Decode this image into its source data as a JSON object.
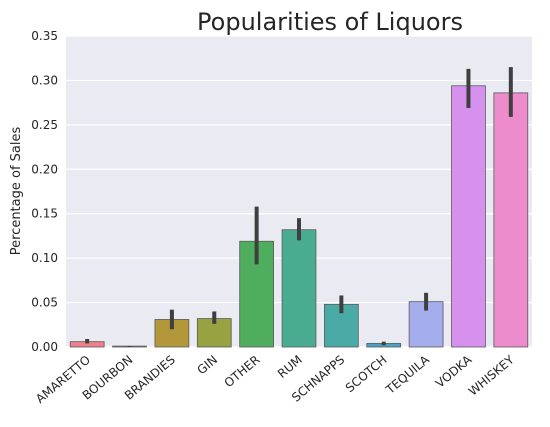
{
  "chart_data": {
    "type": "bar",
    "title": "Popularities of Liquors",
    "xlabel": "",
    "ylabel": "Percentage of Sales",
    "ylim": [
      0,
      0.35
    ],
    "yticks": [
      0.0,
      0.05,
      0.1,
      0.15,
      0.2,
      0.25,
      0.3,
      0.35
    ],
    "ytick_labels": [
      "0.00",
      "0.05",
      "0.10",
      "0.15",
      "0.20",
      "0.25",
      "0.30",
      "0.35"
    ],
    "grid": true,
    "legend": "none",
    "categories": [
      "AMARETTO",
      "BOURBON",
      "BRANDIES",
      "GIN",
      "OTHER",
      "RUM",
      "SCHNAPPS",
      "SCOTCH",
      "TEQUILA",
      "VODKA",
      "WHISKEY"
    ],
    "values": [
      0.006,
      0.001,
      0.031,
      0.032,
      0.119,
      0.132,
      0.048,
      0.004,
      0.051,
      0.294,
      0.286
    ],
    "error_low": [
      0.004,
      0.0,
      0.02,
      0.026,
      0.093,
      0.12,
      0.038,
      0.002,
      0.041,
      0.269,
      0.259
    ],
    "error_high": [
      0.009,
      0.001,
      0.042,
      0.04,
      0.158,
      0.145,
      0.058,
      0.006,
      0.061,
      0.313,
      0.315
    ],
    "colors": [
      "#f07f8b",
      "#d48f57",
      "#b3983a",
      "#97a343",
      "#4fae5e",
      "#49ac91",
      "#4aaaa6",
      "#4aa3c2",
      "#a4aeed",
      "#d690ee",
      "#ec8ccd"
    ]
  },
  "style": {
    "plot_background": "#eaeaf2",
    "error_bar_color": "#3f3f3f"
  }
}
